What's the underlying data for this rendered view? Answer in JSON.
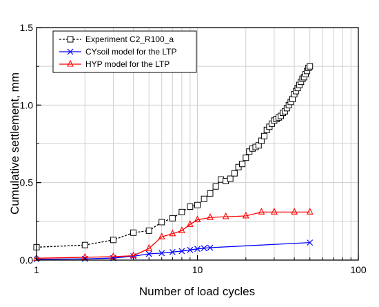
{
  "chart_data": {
    "type": "line",
    "xscale": "log",
    "xlim": [
      1,
      100
    ],
    "ylim": [
      0,
      1.5
    ],
    "xlabel": "Number of load cycles",
    "ylabel": "Cumulative settlement, mm",
    "xticks": [
      "1",
      "10",
      "100"
    ],
    "yticks": [
      "0.0",
      "0.5",
      "1.0",
      "1.5"
    ],
    "ytick_values": [
      0,
      0.5,
      1.0,
      1.5
    ],
    "xtick_values": [
      1,
      10,
      100
    ],
    "grid": true,
    "legend_position": "top-left",
    "series": [
      {
        "name": "Experiment C2_R100_a",
        "color": "#000000",
        "dash": "dashed",
        "marker": "square",
        "x": [
          1,
          2,
          3,
          4,
          5,
          6,
          7,
          8,
          9,
          10,
          11,
          12,
          13,
          14,
          15,
          16,
          17,
          18,
          19,
          20,
          21,
          22,
          23,
          24,
          25,
          26,
          27,
          28,
          29,
          30,
          31,
          32,
          33,
          34,
          35,
          36,
          37,
          38,
          39,
          40,
          41,
          42,
          43,
          44,
          45,
          46,
          47,
          48,
          49,
          50
        ],
        "values": [
          0.083,
          0.097,
          0.13,
          0.177,
          0.19,
          0.245,
          0.27,
          0.31,
          0.345,
          0.355,
          0.395,
          0.43,
          0.475,
          0.52,
          0.51,
          0.525,
          0.56,
          0.6,
          0.62,
          0.66,
          0.7,
          0.72,
          0.73,
          0.74,
          0.77,
          0.8,
          0.84,
          0.86,
          0.88,
          0.9,
          0.91,
          0.92,
          0.93,
          0.95,
          0.96,
          0.98,
          1.0,
          1.02,
          1.04,
          1.07,
          1.09,
          1.11,
          1.13,
          1.15,
          1.17,
          1.18,
          1.2,
          1.22,
          1.24,
          1.25
        ]
      },
      {
        "name": "CYsoil model for the LTP",
        "color": "#0000ff",
        "marker": "x",
        "x": [
          1,
          2,
          3,
          4,
          5,
          6,
          7,
          8,
          9,
          10,
          11,
          12,
          50
        ],
        "values": [
          0.005,
          0.008,
          0.013,
          0.025,
          0.04,
          0.045,
          0.052,
          0.058,
          0.066,
          0.072,
          0.077,
          0.08,
          0.113
        ]
      },
      {
        "name": "HYP model for the LTP",
        "color": "#ff0000",
        "marker": "triangle",
        "x": [
          1,
          2,
          3,
          4,
          5,
          6,
          7,
          8,
          9,
          10,
          12,
          15,
          20,
          25,
          30,
          40,
          50
        ],
        "values": [
          0.012,
          0.018,
          0.022,
          0.028,
          0.075,
          0.15,
          0.17,
          0.19,
          0.23,
          0.26,
          0.275,
          0.28,
          0.285,
          0.31,
          0.31,
          0.31,
          0.31
        ]
      }
    ]
  }
}
